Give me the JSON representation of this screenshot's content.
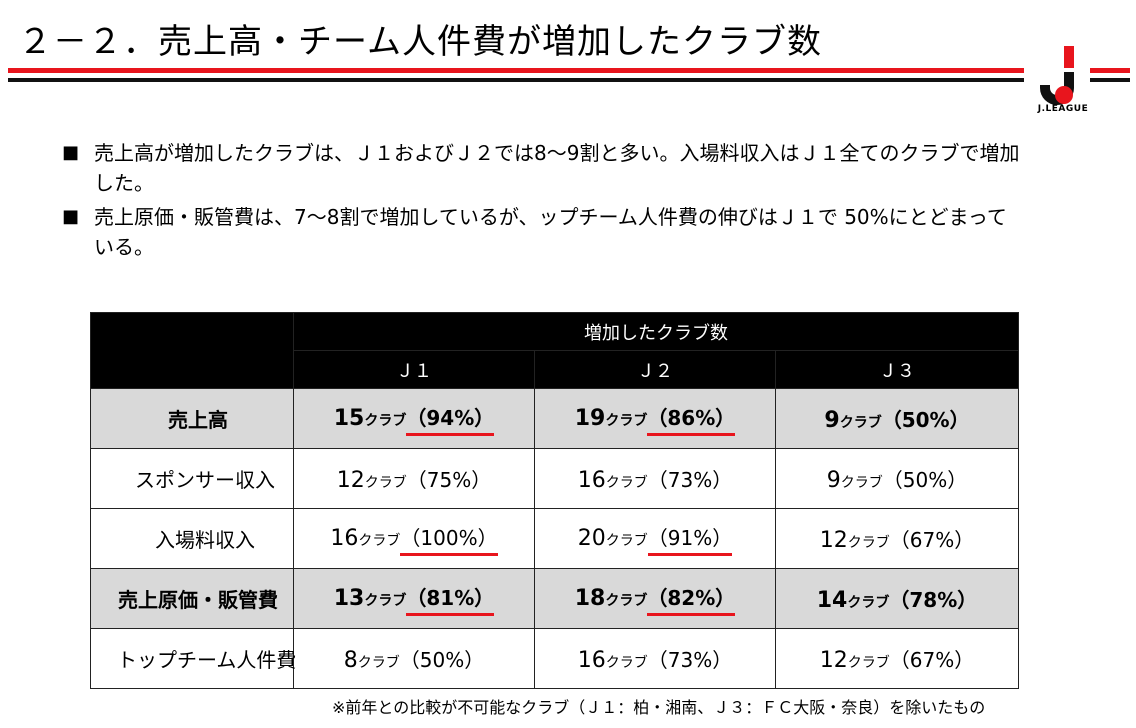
{
  "header": {
    "title": "２－２．売上高・チーム人件費が増加したクラブ数",
    "logo_text": "J.LEAGUE",
    "accent_color": "#e8151d"
  },
  "bullets": [
    {
      "mark": "■",
      "text": "売上高が増加したクラブは、Ｊ１およびＪ２では8～9割と多い。入場料収入はＪ１全てのクラブで増加した。"
    },
    {
      "mark": "■",
      "text": "売上原価・販管費は、7～8割で増加しているが、ップチーム人件費の伸びはＪ１で 50%にとどまっている。"
    }
  ],
  "table": {
    "group_header": "増加したクラブ数",
    "columns": [
      "Ｊ１",
      "Ｊ２",
      "Ｊ３"
    ],
    "rows": [
      {
        "label": "売上高",
        "cells": [
          {
            "num": "15",
            "unit": "クラブ",
            "pct": "（94%）"
          },
          {
            "num": "19",
            "unit": "クラブ",
            "pct": "（86%）"
          },
          {
            "num": "9",
            "unit": "クラブ",
            "pct": "（50%）"
          }
        ]
      },
      {
        "label": "スポンサー収入",
        "cells": [
          {
            "num": "12",
            "unit": "クラブ",
            "pct": "（75%）"
          },
          {
            "num": "16",
            "unit": "クラブ",
            "pct": "（73%）"
          },
          {
            "num": "9",
            "unit": "クラブ",
            "pct": "（50%）"
          }
        ]
      },
      {
        "label": "入場料収入",
        "cells": [
          {
            "num": "16",
            "unit": "クラブ",
            "pct": "（100%）"
          },
          {
            "num": "20",
            "unit": "クラブ",
            "pct": "（91%）"
          },
          {
            "num": "12",
            "unit": "クラブ",
            "pct": "（67%）"
          }
        ]
      },
      {
        "label": "売上原価・販管費",
        "cells": [
          {
            "num": "13",
            "unit": "クラブ",
            "pct": "（81%）"
          },
          {
            "num": "18",
            "unit": "クラブ",
            "pct": "（82%）"
          },
          {
            "num": "14",
            "unit": "クラブ",
            "pct": "（78%）"
          }
        ]
      },
      {
        "label": "トップチーム人件費",
        "cells": [
          {
            "num": "8",
            "unit": "クラブ",
            "pct": "（50%）"
          },
          {
            "num": "16",
            "unit": "クラブ",
            "pct": "（73%）"
          },
          {
            "num": "12",
            "unit": "クラブ",
            "pct": "（67%）"
          }
        ]
      }
    ]
  },
  "footnote": "※前年との比較が不可能なクラブ（Ｊ１：柏・湘南、Ｊ３：ＦＣ大阪・奈良）を除いたもの"
}
